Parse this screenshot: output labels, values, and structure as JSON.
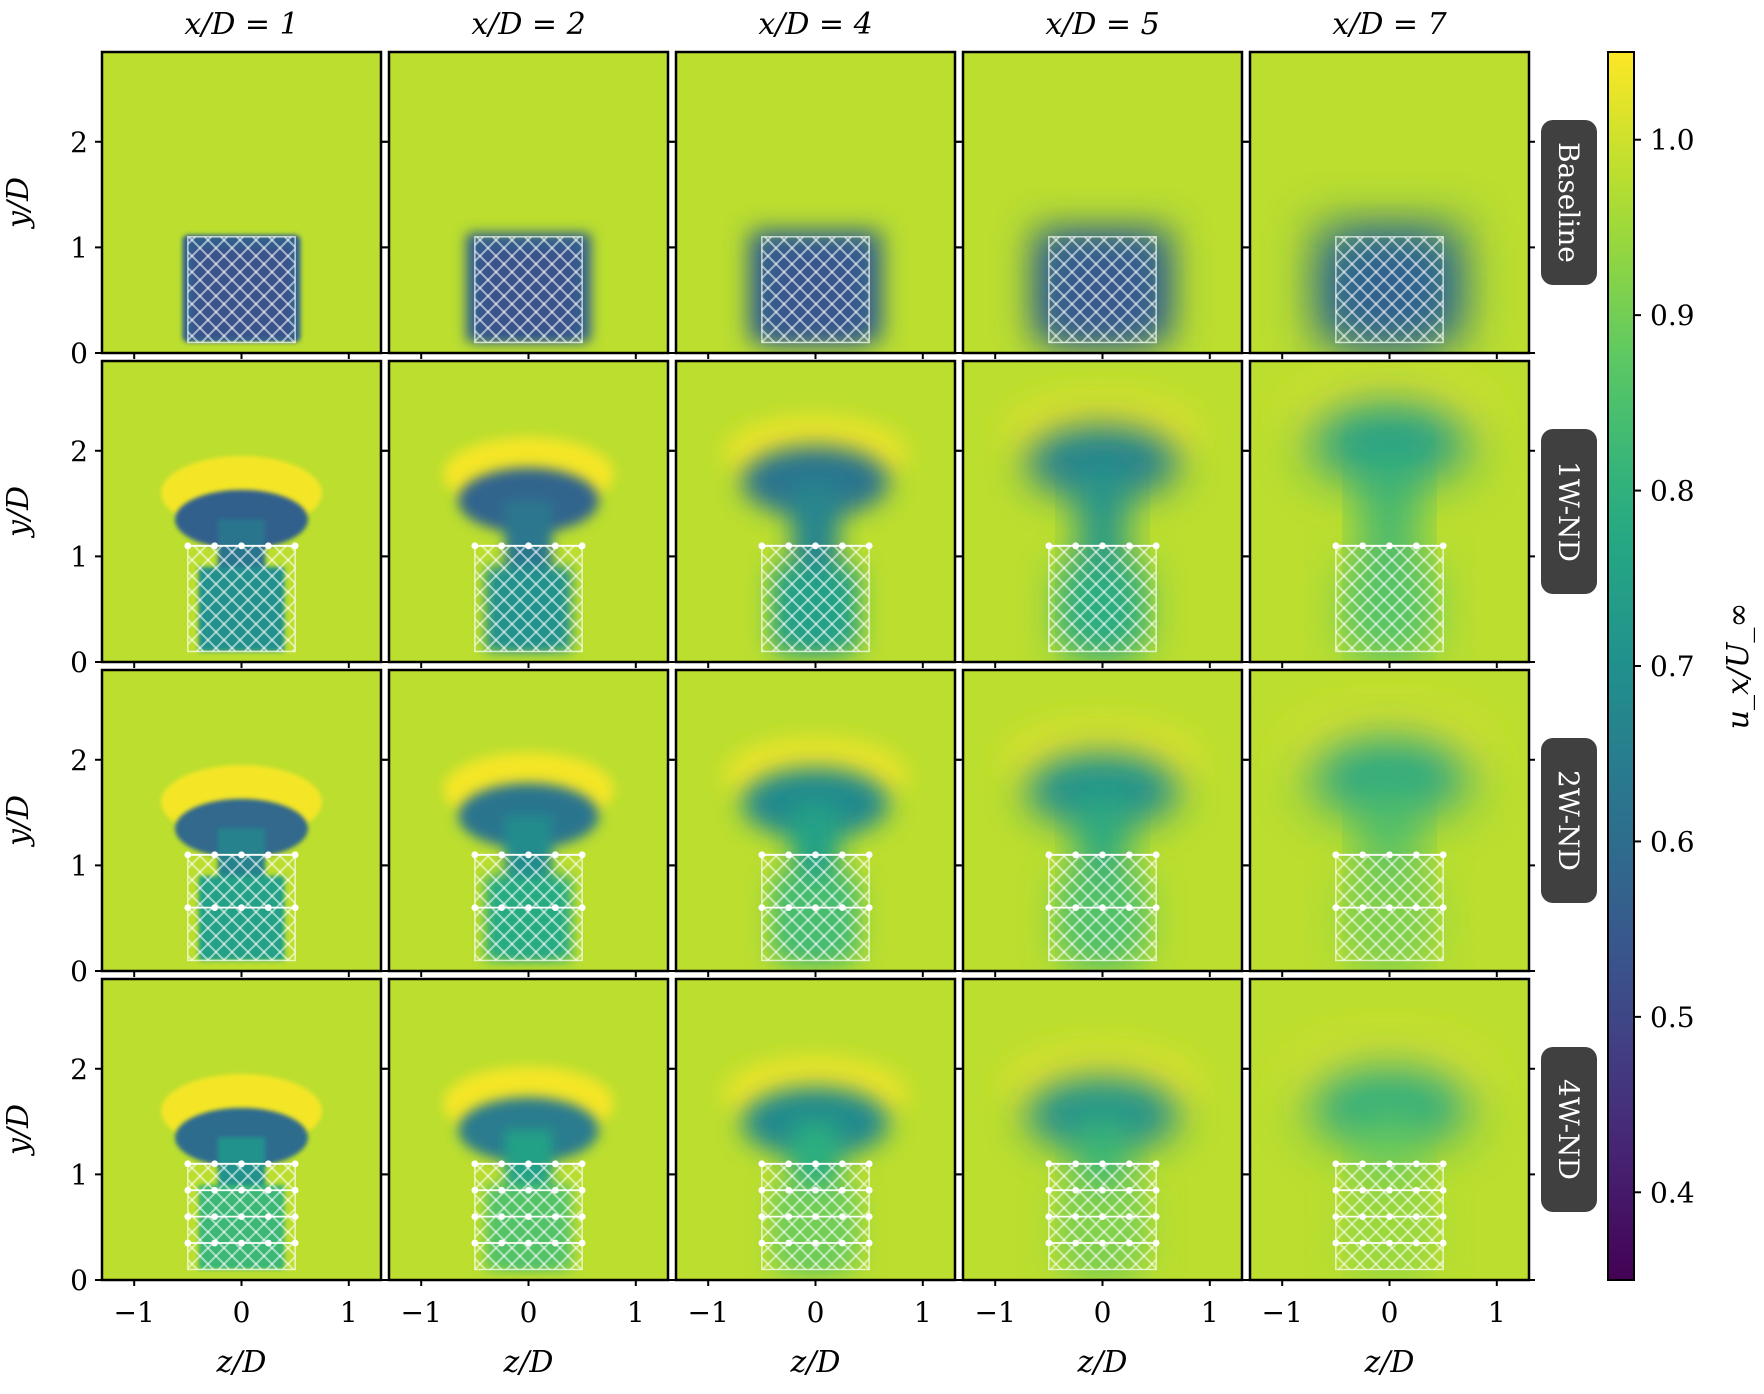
{
  "chart_data": {
    "type": "heatmap",
    "quantity": "u_x/U_∞",
    "columns": [
      {
        "label": "x/D = 1",
        "x_over_D": 1
      },
      {
        "label": "x/D = 2",
        "x_over_D": 2
      },
      {
        "label": "x/D = 4",
        "x_over_D": 4
      },
      {
        "label": "x/D = 5",
        "x_over_D": 5
      },
      {
        "label": "x/D = 7",
        "x_over_D": 7
      }
    ],
    "rows": [
      {
        "label": "Baseline",
        "wire_rows": 0
      },
      {
        "label": "1W-ND",
        "wire_rows": 1
      },
      {
        "label": "2W-ND",
        "wire_rows": 2
      },
      {
        "label": "4W-ND",
        "wire_rows": 4
      }
    ],
    "xlabel": "z/D",
    "ylabel": "y/D",
    "colorbar_label": "u_x/U_∞",
    "xlim": [
      -1.3,
      1.3
    ],
    "ylim": [
      0,
      2.85
    ],
    "xticks": [
      -1,
      0,
      1
    ],
    "xtick_labels": [
      "−1",
      "0",
      "1"
    ],
    "yticks": [
      0,
      1,
      2
    ],
    "ytick_labels": [
      "0",
      "1",
      "2"
    ],
    "clim": [
      0.35,
      1.05
    ],
    "colorbar_ticks": [
      0.4,
      0.5,
      0.6,
      0.7,
      0.8,
      0.9,
      1.0
    ],
    "colorbar_tick_labels": [
      "0.4",
      "0.5",
      "0.6",
      "0.7",
      "0.8",
      "0.9",
      "1.0"
    ],
    "colormap": "viridis",
    "free_stream_value": 0.98,
    "wake_min_values": [
      [
        0.53,
        0.53,
        0.54,
        0.55,
        0.57
      ],
      [
        0.55,
        0.56,
        0.6,
        0.64,
        0.72
      ],
      [
        0.57,
        0.6,
        0.66,
        0.68,
        0.74
      ],
      [
        0.58,
        0.62,
        0.66,
        0.68,
        0.75
      ]
    ],
    "grid": false
  },
  "colors": {
    "tag_background": "#404040",
    "tag_text": "#ffffff",
    "frame": "#000000"
  }
}
